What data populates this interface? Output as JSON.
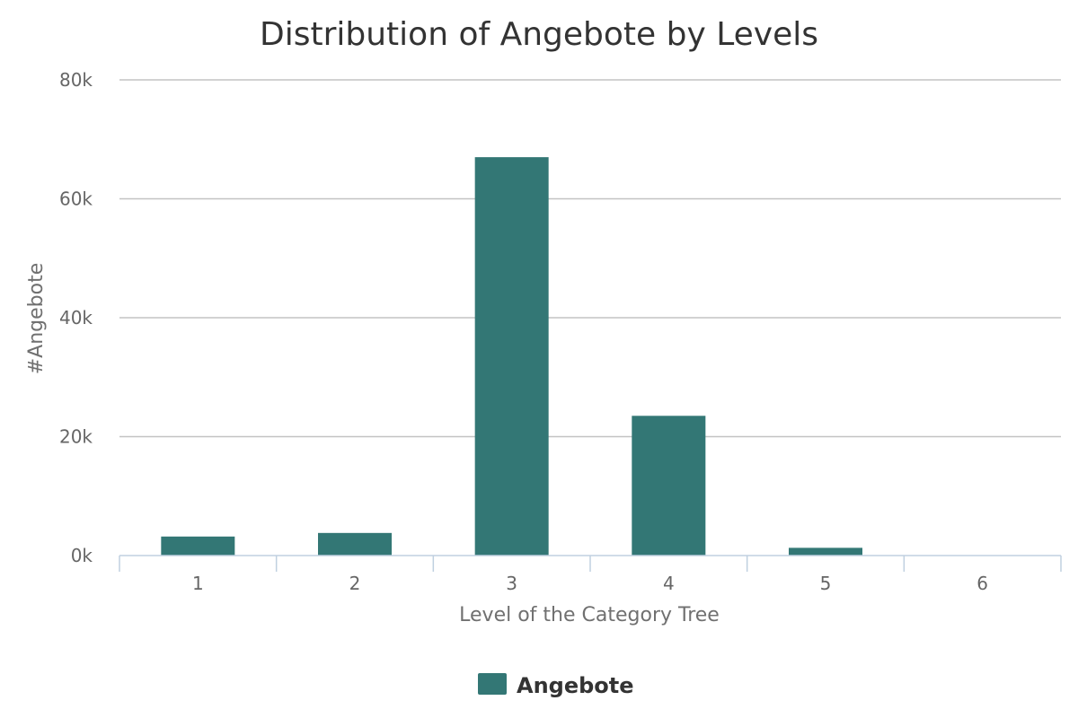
{
  "chart_data": {
    "type": "bar",
    "title": "Distribution of Angebote by Levels",
    "xlabel": "Level of the Category Tree",
    "ylabel": "#Angebote",
    "categories": [
      "1",
      "2",
      "3",
      "4",
      "5",
      "6"
    ],
    "series": [
      {
        "name": "Angebote",
        "values": [
          3200,
          3800,
          67000,
          23500,
          1300,
          0
        ],
        "color": "#337775"
      }
    ],
    "ylim": [
      0,
      80000
    ],
    "yticks": [
      0,
      20000,
      40000,
      60000,
      80000
    ],
    "ytick_labels": [
      "0k",
      "20k",
      "40k",
      "60k",
      "80k"
    ],
    "grid": true,
    "legend": "bottom-center"
  }
}
